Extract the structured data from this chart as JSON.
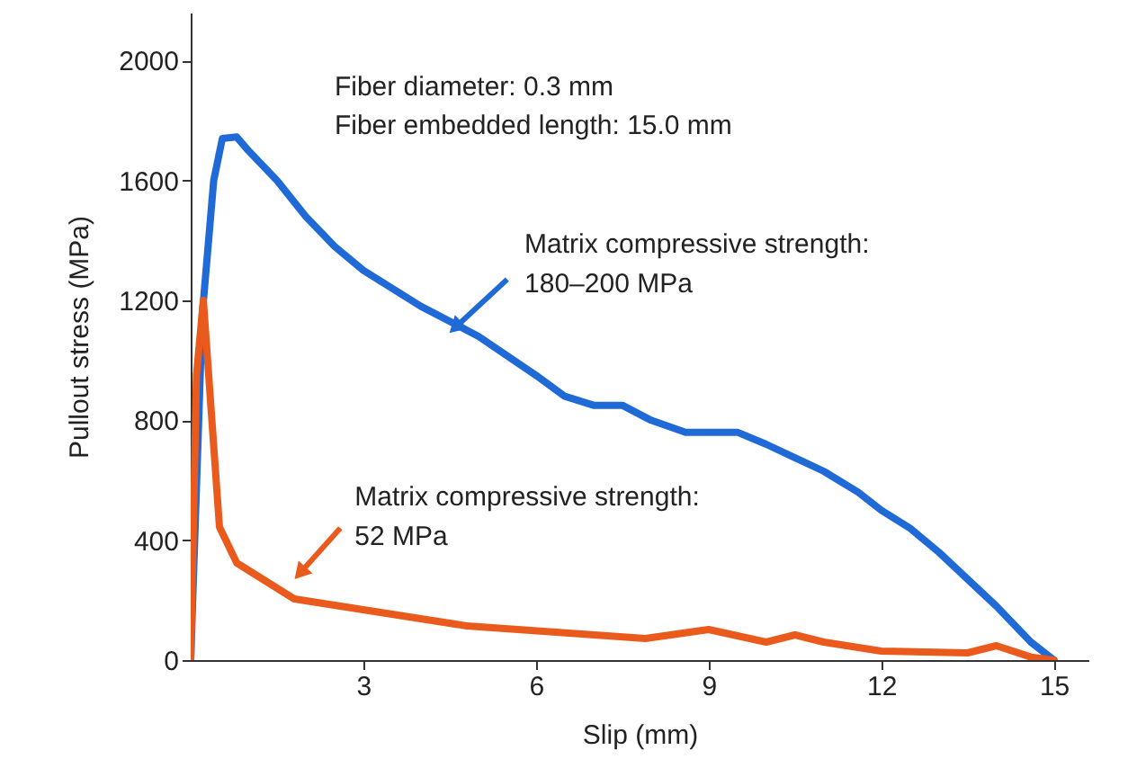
{
  "chart_data": {
    "type": "line",
    "xlabel": "Slip (mm)",
    "ylabel": "Pullout stress (MPa)",
    "xlim": [
      0,
      15.6
    ],
    "ylim": [
      0,
      2160
    ],
    "xticks": [
      3,
      6,
      9,
      12,
      15
    ],
    "yticks": [
      0,
      400,
      800,
      1200,
      1600,
      2000
    ],
    "grid": false,
    "marker": "none",
    "line_style": "solid",
    "annotations": [
      "Fiber diameter: 0.3 mm",
      "Fiber embedded length: 15.0 mm"
    ],
    "series": [
      {
        "name": "Matrix compressive strength:\n180–200 MPa",
        "color": "#1f6ad6",
        "x": [
          0,
          0.2,
          0.4,
          0.55,
          0.8,
          1.0,
          1.5,
          2,
          2.5,
          3,
          4,
          5,
          6,
          6.5,
          7,
          7.5,
          8,
          8.6,
          9.5,
          10,
          11,
          11.6,
          12,
          12.5,
          13,
          14,
          14.6,
          15
        ],
        "values": [
          0,
          1150,
          1600,
          1740,
          1745,
          1700,
          1600,
          1480,
          1380,
          1300,
          1180,
          1080,
          950,
          880,
          850,
          850,
          800,
          760,
          760,
          720,
          630,
          560,
          500,
          440,
          360,
          180,
          60,
          0
        ]
      },
      {
        "name": "Matrix compressive strength:\n52 MPa",
        "color": "#ea5a1c",
        "x": [
          0,
          0.1,
          0.22,
          0.5,
          0.8,
          1.8,
          4.8,
          7.9,
          9,
          10,
          10.5,
          11,
          12,
          13.5,
          14,
          14.6,
          15
        ],
        "values": [
          0,
          950,
          1200,
          444,
          324,
          204,
          114,
          72,
          102,
          60,
          84,
          60,
          30,
          24,
          48,
          10,
          0
        ]
      }
    ]
  }
}
